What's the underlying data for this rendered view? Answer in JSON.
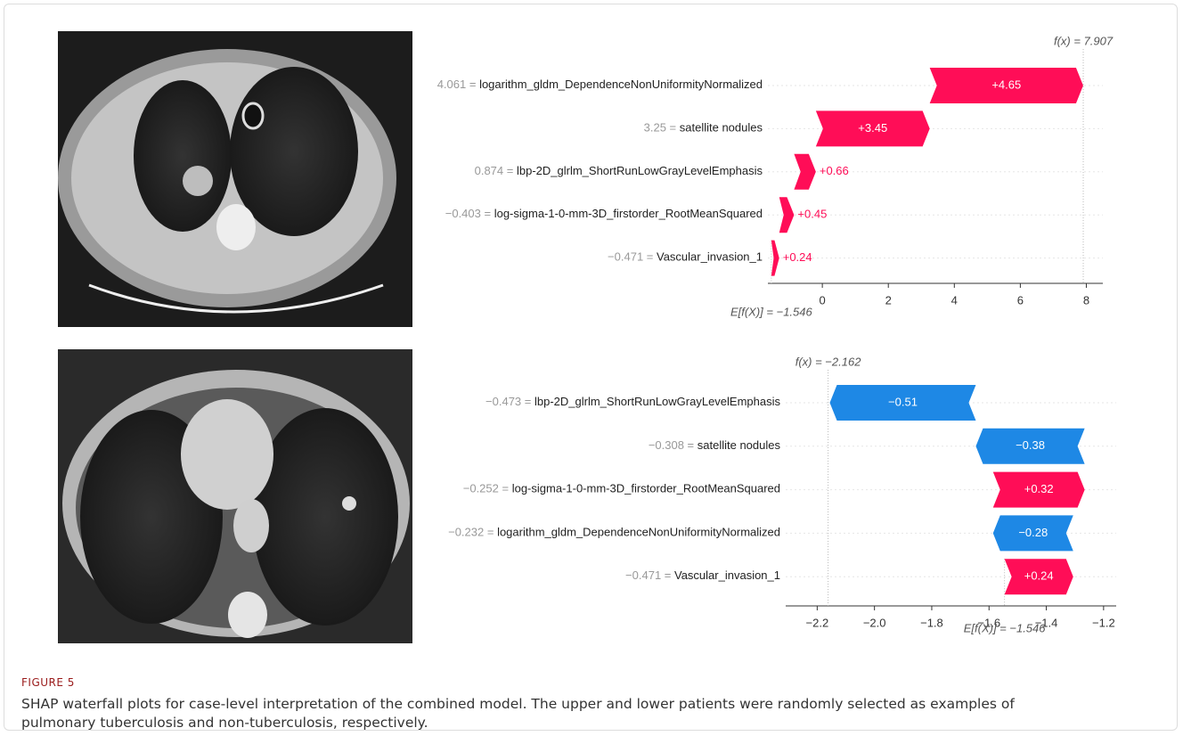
{
  "figure_label": "FIGURE 5",
  "caption": "SHAP waterfall plots for case-level interpretation of the combined model. The upper and lower patients were randomly selected as examples of pulmonary tuberculosis and non-tuberculosis, respectively.",
  "chart_data": [
    {
      "type": "waterfall",
      "features": [
        "logarithm_gldm_DependenceNonUniformityNormalized",
        "satellite nodules",
        "lbp-2D_glrlm_ShortRunLowGrayLevelEmphasis",
        "log-sigma-1-0-mm-3D_firstorder_RootMeanSquared",
        "Vascular_invasion_1"
      ],
      "feature_values": [
        "4.061 =",
        "3.25 =",
        "0.874 =",
        "−0.403 =",
        "−0.471 ="
      ],
      "values": [
        4.65,
        3.45,
        0.66,
        0.45,
        0.24
      ],
      "value_labels": [
        "+4.65",
        "+3.45",
        "+0.66",
        "+0.45",
        "+0.24"
      ],
      "base": {
        "value": -1.546,
        "label": "E[f(X)] = −1.546"
      },
      "fx": {
        "value": 7.907,
        "label": "f(x) = 7.907"
      },
      "xlim": [
        -1.65,
        8.5
      ],
      "xticks": [
        0,
        2,
        4,
        6,
        8
      ],
      "positive_color": "#ff0d57",
      "negative_color": "#1e88e5"
    },
    {
      "type": "waterfall",
      "features": [
        "lbp-2D_glrlm_ShortRunLowGrayLevelEmphasis",
        "satellite nodules",
        "log-sigma-1-0-mm-3D_firstorder_RootMeanSquared",
        "logarithm_gldm_DependenceNonUniformityNormalized",
        "Vascular_invasion_1"
      ],
      "feature_values": [
        "−0.473 =",
        "−0.308 =",
        "−0.252 =",
        "−0.232 =",
        "−0.471 ="
      ],
      "values": [
        -0.51,
        -0.38,
        0.32,
        -0.28,
        0.24
      ],
      "value_labels": [
        "−0.51",
        "−0.38",
        "+0.32",
        "−0.28",
        "+0.24"
      ],
      "base": {
        "value": -1.546,
        "label": "E[f(X)] = −1.546"
      },
      "fx": {
        "value": -2.162,
        "label": "f(x) = −2.162"
      },
      "xlim": [
        -2.31,
        -1.156
      ],
      "xticks": [
        {
          "value": -2.2,
          "label": "−2.2"
        },
        {
          "value": -2.0,
          "label": "−2.0"
        },
        {
          "value": -1.8,
          "label": "−1.8"
        },
        {
          "value": -1.6,
          "label": "−1.6"
        },
        {
          "value": -1.4,
          "label": "−1.4"
        },
        {
          "value": -1.2,
          "label": "−1.2"
        }
      ],
      "positive_color": "#ff0d57",
      "negative_color": "#1e88e5"
    }
  ]
}
